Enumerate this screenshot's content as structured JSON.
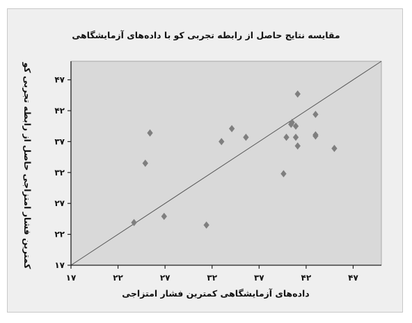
{
  "chart_data": {
    "type": "scatter",
    "title": "مقایسه نتایج حاصل از رابطه تجربی کو با داده‌های آزمایشگاهی",
    "xlabel": "داده‌های آزمایشگاهی کمترین فشار امتزاجی",
    "ylabel": "کمترین فشار امتزاجی حاصل از رابطه تجربی کو",
    "xlim": [
      17,
      50
    ],
    "ylim": [
      17,
      50
    ],
    "x_ticks": [
      17,
      22,
      27,
      32,
      37,
      42,
      47
    ],
    "y_ticks": [
      17,
      22,
      27,
      32,
      37,
      42,
      47
    ],
    "x_tick_labels": [
      "۱۷",
      "۲۲",
      "۲۷",
      "۳۲",
      "۳۷",
      "۴۲",
      "۴۷"
    ],
    "y_tick_labels": [
      "۱۷",
      "۲۲",
      "۲۷",
      "۳۲",
      "۳۷",
      "۴۲",
      "۴۷"
    ],
    "reference_line": {
      "from": [
        17,
        17
      ],
      "to": [
        50,
        50
      ]
    },
    "grid": false,
    "legend": false,
    "plot_background": "#d9d9d9",
    "marker_color": "#7f7f7f",
    "marker": "diamond",
    "points": [
      {
        "x": 23.7,
        "y": 23.9
      },
      {
        "x": 24.9,
        "y": 33.5
      },
      {
        "x": 25.4,
        "y": 38.4
      },
      {
        "x": 26.9,
        "y": 24.9
      },
      {
        "x": 31.4,
        "y": 23.5
      },
      {
        "x": 33.0,
        "y": 37.0
      },
      {
        "x": 34.1,
        "y": 39.1
      },
      {
        "x": 35.6,
        "y": 37.7
      },
      {
        "x": 39.6,
        "y": 31.8
      },
      {
        "x": 39.9,
        "y": 37.7
      },
      {
        "x": 40.4,
        "y": 39.8
      },
      {
        "x": 40.5,
        "y": 40.1
      },
      {
        "x": 40.9,
        "y": 39.5
      },
      {
        "x": 40.9,
        "y": 37.7
      },
      {
        "x": 41.1,
        "y": 36.3
      },
      {
        "x": 41.1,
        "y": 44.7
      },
      {
        "x": 43.0,
        "y": 41.4
      },
      {
        "x": 43.0,
        "y": 37.9
      },
      {
        "x": 43.0,
        "y": 38.1
      },
      {
        "x": 45.0,
        "y": 35.9
      }
    ]
  }
}
